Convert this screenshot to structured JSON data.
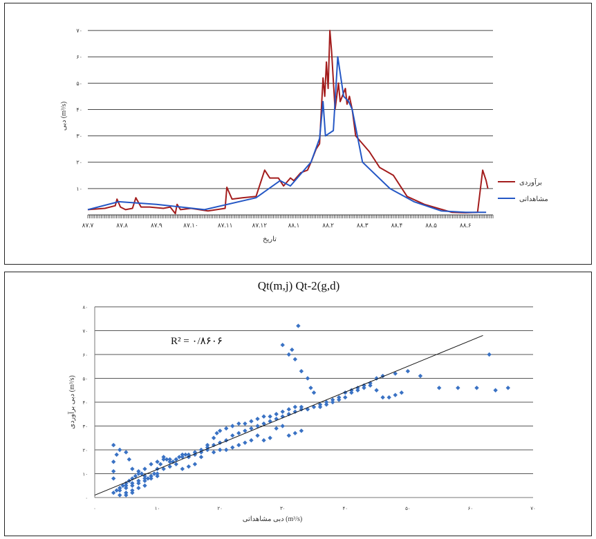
{
  "chart_data": [
    {
      "type": "line",
      "title": "",
      "xlabel": "تاریخ",
      "ylabel": "دبی (m³/s)",
      "y_ticks": [
        "۱۰",
        "۲۰",
        "۳۰",
        "۴۰",
        "۵۰",
        "۶۰",
        "۷۰"
      ],
      "ylim": [
        0,
        75
      ],
      "x_tick_labels": [
        "۸۷.۷",
        "۸۷.۸",
        "۸۷.۹",
        "۸۷.۱۰",
        "۸۷.۱۱",
        "۸۷.۱۲",
        "۸۸.۱",
        "۸۸.۲",
        "۸۸.۳",
        "۸۸.۴",
        "۸۸.۵",
        "۸۸.۶"
      ],
      "xlim": [
        0,
        11.8
      ],
      "grid": true,
      "legend_position": "right",
      "series": [
        {
          "name": "برآوردی",
          "color": "#a31c1c",
          "points": [
            [
              0,
              2
            ],
            [
              0.5,
              2.5
            ],
            [
              0.8,
              3.5
            ],
            [
              0.85,
              6
            ],
            [
              0.95,
              3
            ],
            [
              1.1,
              2
            ],
            [
              1.3,
              2.5
            ],
            [
              1.4,
              6.5
            ],
            [
              1.55,
              3
            ],
            [
              1.8,
              3
            ],
            [
              2.2,
              2.5
            ],
            [
              2.4,
              3
            ],
            [
              2.55,
              0.5
            ],
            [
              2.6,
              4
            ],
            [
              2.7,
              2
            ],
            [
              3.0,
              2.5
            ],
            [
              3.5,
              1.5
            ],
            [
              4.0,
              2.5
            ],
            [
              4.05,
              10.5
            ],
            [
              4.2,
              6
            ],
            [
              4.5,
              6.5
            ],
            [
              4.9,
              7
            ],
            [
              5.15,
              17
            ],
            [
              5.3,
              14
            ],
            [
              5.55,
              14
            ],
            [
              5.7,
              11
            ],
            [
              5.9,
              14
            ],
            [
              6.0,
              13
            ],
            [
              6.2,
              16
            ],
            [
              6.4,
              17
            ],
            [
              6.5,
              20
            ],
            [
              6.65,
              25
            ],
            [
              6.75,
              27
            ],
            [
              6.85,
              52
            ],
            [
              6.9,
              45
            ],
            [
              6.95,
              58
            ],
            [
              7.0,
              48
            ],
            [
              7.05,
              70
            ],
            [
              7.1,
              62
            ],
            [
              7.2,
              40
            ],
            [
              7.3,
              50
            ],
            [
              7.35,
              43
            ],
            [
              7.5,
              48
            ],
            [
              7.55,
              42
            ],
            [
              7.62,
              45
            ],
            [
              7.7,
              40
            ],
            [
              7.8,
              30
            ],
            [
              8.0,
              27
            ],
            [
              8.2,
              24
            ],
            [
              8.5,
              18
            ],
            [
              8.9,
              15
            ],
            [
              9.3,
              7
            ],
            [
              9.8,
              4
            ],
            [
              10.2,
              2.5
            ],
            [
              10.6,
              1
            ],
            [
              11.0,
              0.8
            ],
            [
              11.35,
              1
            ],
            [
              11.5,
              17
            ],
            [
              11.6,
              13
            ],
            [
              11.65,
              10
            ]
          ]
        },
        {
          "name": "مشاهداتی",
          "color": "#2457c5",
          "points": [
            [
              0,
              2
            ],
            [
              0.9,
              5
            ],
            [
              2.0,
              4
            ],
            [
              3.4,
              2
            ],
            [
              4.9,
              6.5
            ],
            [
              5.6,
              13
            ],
            [
              5.9,
              11
            ],
            [
              6.2,
              15.5
            ],
            [
              6.5,
              20
            ],
            [
              6.75,
              29
            ],
            [
              6.85,
              43
            ],
            [
              6.92,
              30
            ],
            [
              7.15,
              32
            ],
            [
              7.28,
              60
            ],
            [
              7.45,
              45
            ],
            [
              7.6,
              43
            ],
            [
              7.7,
              40
            ],
            [
              8.0,
              20
            ],
            [
              8.8,
              10
            ],
            [
              9.5,
              5
            ],
            [
              10.3,
              1.5
            ],
            [
              11.0,
              1
            ],
            [
              11.6,
              1
            ]
          ]
        }
      ]
    },
    {
      "type": "scatter",
      "title": "Qt(m,j) Qt-2(g,d)",
      "xlabel": "دبی مشاهداتی (m³/s)",
      "ylabel": "دبی برآوردی (m³/s)",
      "xlim": [
        0,
        70
      ],
      "ylim": [
        0,
        80
      ],
      "x_ticks": [
        "۰",
        "۱۰",
        "۲۰",
        "۳۰",
        "۴۰",
        "۵۰",
        "۶۰",
        "۷۰"
      ],
      "y_ticks": [
        "۰",
        "۱۰",
        "۲۰",
        "۳۰",
        "۴۰",
        "۵۰",
        "۶۰",
        "۷۰",
        "۸۰"
      ],
      "r2_label": "R² = ۰/۸۶۰۶",
      "grid": true,
      "marker_color": "#3a72c4",
      "trendline": [
        [
          0,
          1
        ],
        [
          62,
          68
        ]
      ],
      "points": [
        [
          3,
          2
        ],
        [
          3.5,
          3
        ],
        [
          4,
          4
        ],
        [
          4.5,
          5
        ],
        [
          5,
          6
        ],
        [
          5.5,
          7
        ],
        [
          6,
          8
        ],
        [
          6.5,
          9
        ],
        [
          7,
          10
        ],
        [
          7.5,
          10
        ],
        [
          8,
          9
        ],
        [
          8.5,
          8
        ],
        [
          9,
          9
        ],
        [
          9.5,
          10
        ],
        [
          10,
          12
        ],
        [
          10.5,
          14
        ],
        [
          11,
          16
        ],
        [
          11.5,
          16
        ],
        [
          12,
          15
        ],
        [
          12.5,
          15
        ],
        [
          13,
          16
        ],
        [
          13.5,
          17
        ],
        [
          14,
          18
        ],
        [
          14.5,
          18
        ],
        [
          15,
          17
        ],
        [
          16,
          18
        ],
        [
          17,
          19
        ],
        [
          18,
          22
        ],
        [
          19,
          25
        ],
        [
          19.5,
          27
        ],
        [
          20,
          28
        ],
        [
          21,
          29
        ],
        [
          22,
          30
        ],
        [
          23,
          31
        ],
        [
          24,
          31
        ],
        [
          25,
          32
        ],
        [
          26,
          33
        ],
        [
          27,
          34
        ],
        [
          28,
          34
        ],
        [
          29,
          35
        ],
        [
          30,
          36
        ],
        [
          31,
          37
        ],
        [
          32,
          38
        ],
        [
          33,
          38
        ],
        [
          34,
          37
        ],
        [
          35,
          38
        ],
        [
          36,
          39
        ],
        [
          37,
          40
        ],
        [
          38,
          41
        ],
        [
          39,
          42
        ],
        [
          40,
          44
        ],
        [
          41,
          45
        ],
        [
          42,
          46
        ],
        [
          43,
          47
        ],
        [
          44,
          48
        ],
        [
          45,
          50
        ],
        [
          46,
          51
        ],
        [
          48,
          52
        ],
        [
          50,
          53
        ],
        [
          52,
          51
        ],
        [
          55,
          46
        ],
        [
          58,
          46
        ],
        [
          61,
          46
        ],
        [
          64,
          45
        ],
        [
          66,
          46
        ],
        [
          63,
          60
        ],
        [
          30,
          64
        ],
        [
          31,
          60
        ],
        [
          31.5,
          62
        ],
        [
          32,
          58
        ],
        [
          32.5,
          72
        ],
        [
          33,
          53
        ],
        [
          34,
          50
        ],
        [
          34.5,
          46
        ],
        [
          35,
          44
        ],
        [
          36,
          38
        ],
        [
          37,
          39
        ],
        [
          38,
          40
        ],
        [
          39,
          41
        ],
        [
          40,
          42
        ],
        [
          41,
          44
        ],
        [
          42,
          45
        ],
        [
          43,
          46
        ],
        [
          44,
          47
        ],
        [
          45,
          45
        ],
        [
          46,
          42
        ],
        [
          47,
          42
        ],
        [
          48,
          43
        ],
        [
          49,
          44
        ],
        [
          31,
          26
        ],
        [
          32,
          27
        ],
        [
          33,
          28
        ],
        [
          30,
          30
        ],
        [
          29,
          29
        ],
        [
          28,
          25
        ],
        [
          27,
          24
        ],
        [
          26,
          26
        ],
        [
          25,
          24
        ],
        [
          24,
          23
        ],
        [
          23,
          22
        ],
        [
          22,
          21
        ],
        [
          21,
          20
        ],
        [
          20,
          20
        ],
        [
          19,
          19
        ],
        [
          18,
          20
        ],
        [
          17,
          17
        ],
        [
          16,
          14
        ],
        [
          15,
          13
        ],
        [
          14,
          12
        ],
        [
          13,
          14
        ],
        [
          12,
          13
        ],
        [
          11,
          12
        ],
        [
          10,
          10
        ],
        [
          9,
          9
        ],
        [
          8,
          8
        ],
        [
          7,
          7
        ],
        [
          6,
          6
        ],
        [
          5,
          5
        ],
        [
          4,
          4
        ],
        [
          3,
          8
        ],
        [
          3,
          11
        ],
        [
          3,
          15
        ],
        [
          3.5,
          18
        ],
        [
          3,
          22
        ],
        [
          4,
          20
        ],
        [
          5,
          19
        ],
        [
          5.5,
          16
        ],
        [
          6,
          12
        ],
        [
          7,
          11
        ],
        [
          8,
          12
        ],
        [
          9,
          14
        ],
        [
          10,
          15
        ],
        [
          11,
          17
        ],
        [
          12,
          16
        ],
        [
          13,
          16
        ],
        [
          14,
          17
        ],
        [
          15,
          18
        ],
        [
          16,
          19
        ],
        [
          17,
          20
        ],
        [
          18,
          21
        ],
        [
          19,
          22
        ],
        [
          20,
          23
        ],
        [
          21,
          24
        ],
        [
          22,
          26
        ],
        [
          23,
          27
        ],
        [
          24,
          28
        ],
        [
          25,
          29
        ],
        [
          26,
          30
        ],
        [
          27,
          31
        ],
        [
          28,
          32
        ],
        [
          29,
          33
        ],
        [
          30,
          34
        ],
        [
          31,
          35
        ],
        [
          32,
          36
        ],
        [
          33,
          37
        ],
        [
          4,
          3
        ],
        [
          5,
          4
        ],
        [
          6,
          5
        ],
        [
          7,
          6
        ],
        [
          8,
          7
        ],
        [
          9,
          8
        ],
        [
          10,
          9
        ],
        [
          5,
          2
        ],
        [
          6,
          3
        ],
        [
          7,
          4
        ],
        [
          8,
          5
        ],
        [
          4,
          1
        ],
        [
          5,
          1
        ],
        [
          6,
          2
        ]
      ]
    }
  ]
}
